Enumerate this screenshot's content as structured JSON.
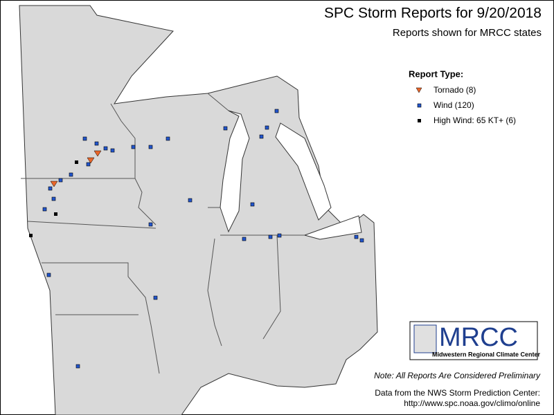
{
  "title": "SPC Storm Reports for 9/20/2018",
  "subtitle": "Reports shown for MRCC states",
  "legend": {
    "title": "Report Type:",
    "items": [
      "Tornado (8)",
      "Wind (120)",
      "High Wind: 65 KT+ (6)"
    ]
  },
  "logo": {
    "name": "MRCC",
    "full_name": "Midwestern Regional Climate Center"
  },
  "note": "Note: All Reports Are Considered Preliminary",
  "source": [
    "Data from the NWS Storm Prediction Center:",
    "http://www.spc.noaa.gov/climo/online"
  ]
}
